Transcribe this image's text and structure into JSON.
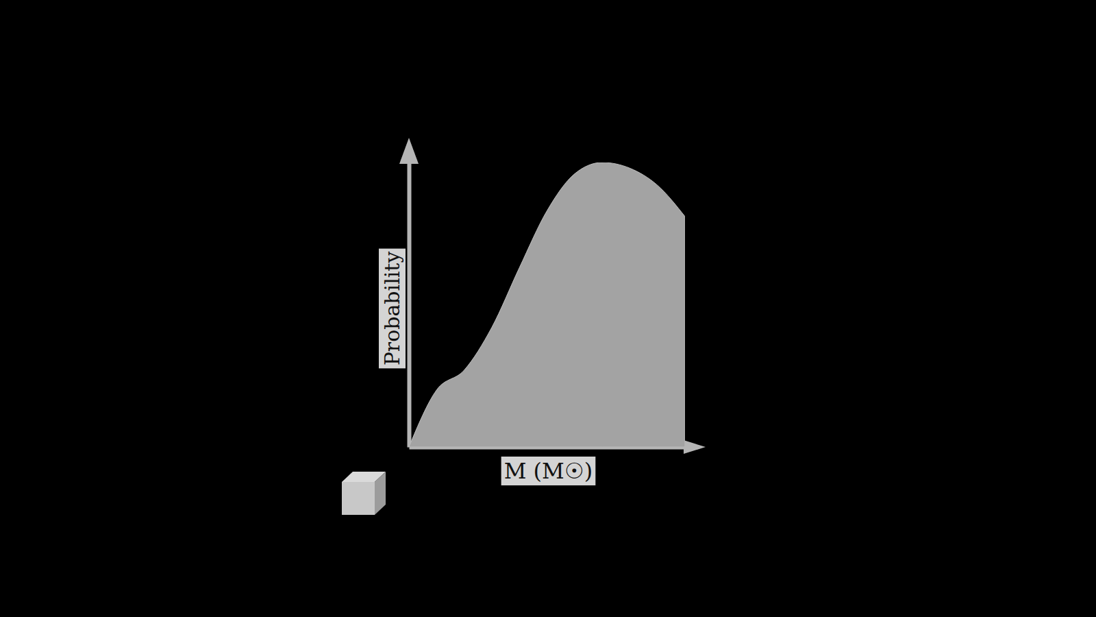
{
  "chart_data": {
    "type": "area",
    "x_label": "M (M☉)",
    "y_label": "Probability",
    "x": [
      0,
      0.1,
      0.2,
      0.3,
      0.4,
      0.5,
      0.6,
      0.7,
      0.8,
      0.9,
      1.0
    ],
    "values": [
      0,
      0.2,
      0.27,
      0.42,
      0.63,
      0.83,
      0.96,
      1.0,
      0.98,
      0.92,
      0.81
    ],
    "xlim": [
      0,
      1
    ],
    "ylim": [
      0,
      1
    ],
    "tick_labels": false,
    "color": "#a3a3a3"
  }
}
